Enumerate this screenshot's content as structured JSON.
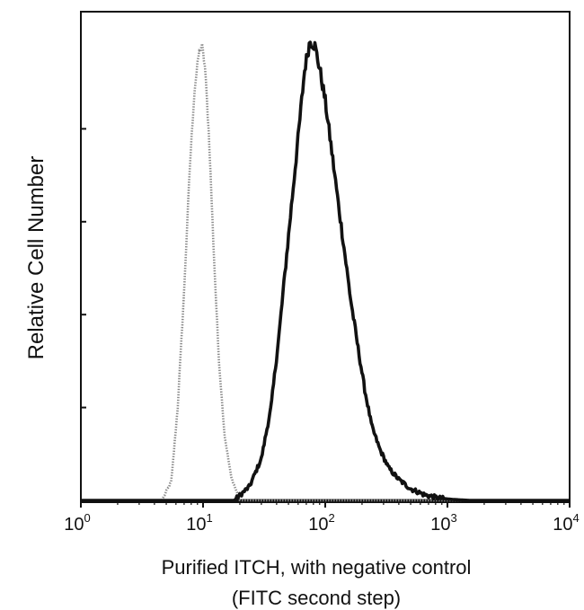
{
  "chart_data": {
    "type": "line",
    "xlabel": "Purified ITCH, with negative control",
    "xlabel_line2": "(FITC second step)",
    "ylabel": "Relative Cell Number",
    "x_scale": "log",
    "xlim": [
      1,
      10000
    ],
    "x_ticks": [
      {
        "base": "10",
        "exp": "0",
        "value": 1
      },
      {
        "base": "10",
        "exp": "1",
        "value": 10
      },
      {
        "base": "10",
        "exp": "2",
        "value": 100
      },
      {
        "base": "10",
        "exp": "3",
        "value": 1000
      },
      {
        "base": "10",
        "exp": "4",
        "value": 10000
      }
    ],
    "ylim": [
      0,
      1
    ],
    "y_tick_values": [
      0.2,
      0.4,
      0.6,
      0.8
    ],
    "grid": false,
    "series": [
      {
        "role": "negative-control",
        "style": "dotted",
        "color": "#8a8a8a",
        "x": [
          1,
          4.6,
          5.5,
          6.2,
          7.0,
          7.8,
          8.5,
          9.2,
          9.8,
          10.4,
          11.2,
          12.3,
          13.5,
          15.0,
          17.0,
          20.0,
          10000
        ],
        "y": [
          0,
          0,
          0.04,
          0.2,
          0.45,
          0.72,
          0.88,
          0.96,
          0.98,
          0.93,
          0.78,
          0.52,
          0.3,
          0.14,
          0.05,
          0,
          0
        ]
      },
      {
        "role": "purified-ITCH",
        "style": "solid-noisy",
        "color": "#111111",
        "x": [
          1,
          18,
          24,
          30,
          36,
          42,
          48,
          55,
          62,
          68,
          75,
          82,
          90,
          100,
          112,
          125,
          140,
          160,
          185,
          210,
          240,
          280,
          330,
          400,
          500,
          650,
          850,
          1100,
          1500,
          10000
        ],
        "y": [
          0,
          0,
          0.03,
          0.09,
          0.2,
          0.36,
          0.52,
          0.68,
          0.82,
          0.93,
          0.99,
          0.98,
          0.93,
          0.86,
          0.76,
          0.66,
          0.56,
          0.44,
          0.33,
          0.24,
          0.16,
          0.11,
          0.07,
          0.045,
          0.025,
          0.012,
          0.005,
          0.002,
          0,
          0
        ]
      }
    ]
  }
}
